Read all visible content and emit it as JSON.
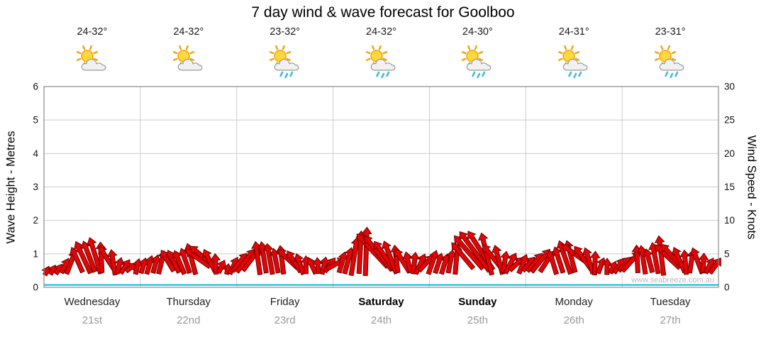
{
  "title": "7 day wind & wave forecast for Goolboo",
  "watermark": "www.seabreeze.com.au",
  "axes": {
    "left_title": "Wave Height - Metres",
    "right_title": "Wind Speed - Knots",
    "left_ticks": [
      "0",
      "1",
      "2",
      "3",
      "4",
      "5",
      "6"
    ],
    "right_ticks": [
      "0",
      "5",
      "10",
      "15",
      "20",
      "25",
      "30"
    ]
  },
  "colors": {
    "arrow_fill": "#e30505",
    "arrow_stroke": "#6b0000",
    "wave_line": "#00bcd4",
    "grid": "#cccccc",
    "plot_border": "#8a8a8a",
    "tick_text": "#111111",
    "date_text": "#999999"
  },
  "days": [
    {
      "name": "Wednesday",
      "date": "21st",
      "temp": "24-32°",
      "icon": "partly-cloudy",
      "weekend": false
    },
    {
      "name": "Thursday",
      "date": "22nd",
      "temp": "24-32°",
      "icon": "partly-cloudy",
      "weekend": false
    },
    {
      "name": "Friday",
      "date": "23rd",
      "temp": "23-32°",
      "icon": "partly-cloudy-showers",
      "weekend": false
    },
    {
      "name": "Saturday",
      "date": "24th",
      "temp": "24-32°",
      "icon": "partly-cloudy-showers",
      "weekend": true
    },
    {
      "name": "Sunday",
      "date": "25th",
      "temp": "24-30°",
      "icon": "partly-cloudy-showers",
      "weekend": true
    },
    {
      "name": "Monday",
      "date": "26th",
      "temp": "24-31°",
      "icon": "partly-cloudy-showers",
      "weekend": false
    },
    {
      "name": "Tuesday",
      "date": "27th",
      "temp": "23-31°",
      "icon": "partly-cloudy-showers",
      "weekend": false
    }
  ],
  "chart_data": {
    "type": "line",
    "title": "7 day wind & wave forecast for Goolboo",
    "x_categories": [
      "Wednesday 21st",
      "Thursday 22nd",
      "Friday 23rd",
      "Saturday 24th",
      "Sunday 25th",
      "Monday 26th",
      "Tuesday 27th"
    ],
    "sample_interval_hours": 3,
    "ylim_left_metres": [
      0,
      6
    ],
    "ylim_right_knots": [
      0,
      30
    ],
    "grid": true,
    "series": [
      {
        "name": "Wind Speed",
        "units": "knots",
        "axis": "right",
        "style": "red-direction-arrows",
        "values": [
          3.0,
          3.5,
          5.5,
          7.0,
          7.5,
          6.5,
          4.5,
          4.0,
          4.5,
          5.0,
          6.0,
          5.5,
          6.5,
          7.0,
          5.0,
          3.5,
          5.5,
          6.5,
          7.0,
          6.0,
          6.5,
          5.0,
          4.5,
          4.5,
          5.0,
          6.0,
          8.5,
          9.0,
          7.5,
          6.5,
          5.5,
          5.0,
          5.5,
          5.0,
          6.5,
          8.5,
          9.0,
          7.0,
          5.5,
          5.0,
          5.0,
          6.0,
          5.5,
          7.0,
          7.5,
          6.0,
          4.5,
          4.0,
          5.0,
          6.5,
          6.0,
          7.5,
          7.0,
          5.5,
          6.0,
          4.5
        ],
        "direction_deg": [
          210,
          200,
          170,
          150,
          140,
          150,
          180,
          200,
          190,
          170,
          150,
          140,
          130,
          120,
          150,
          190,
          200,
          180,
          160,
          140,
          130,
          140,
          160,
          180,
          210,
          190,
          160,
          140,
          130,
          140,
          160,
          180,
          200,
          180,
          150,
          130,
          120,
          140,
          170,
          190,
          210,
          190,
          160,
          140,
          130,
          150,
          170,
          200,
          200,
          180,
          150,
          140,
          130,
          150,
          160,
          190
        ]
      },
      {
        "name": "Wave Height",
        "units": "metres",
        "axis": "left",
        "style": "cyan-line",
        "constant_value": 0.05
      }
    ]
  }
}
